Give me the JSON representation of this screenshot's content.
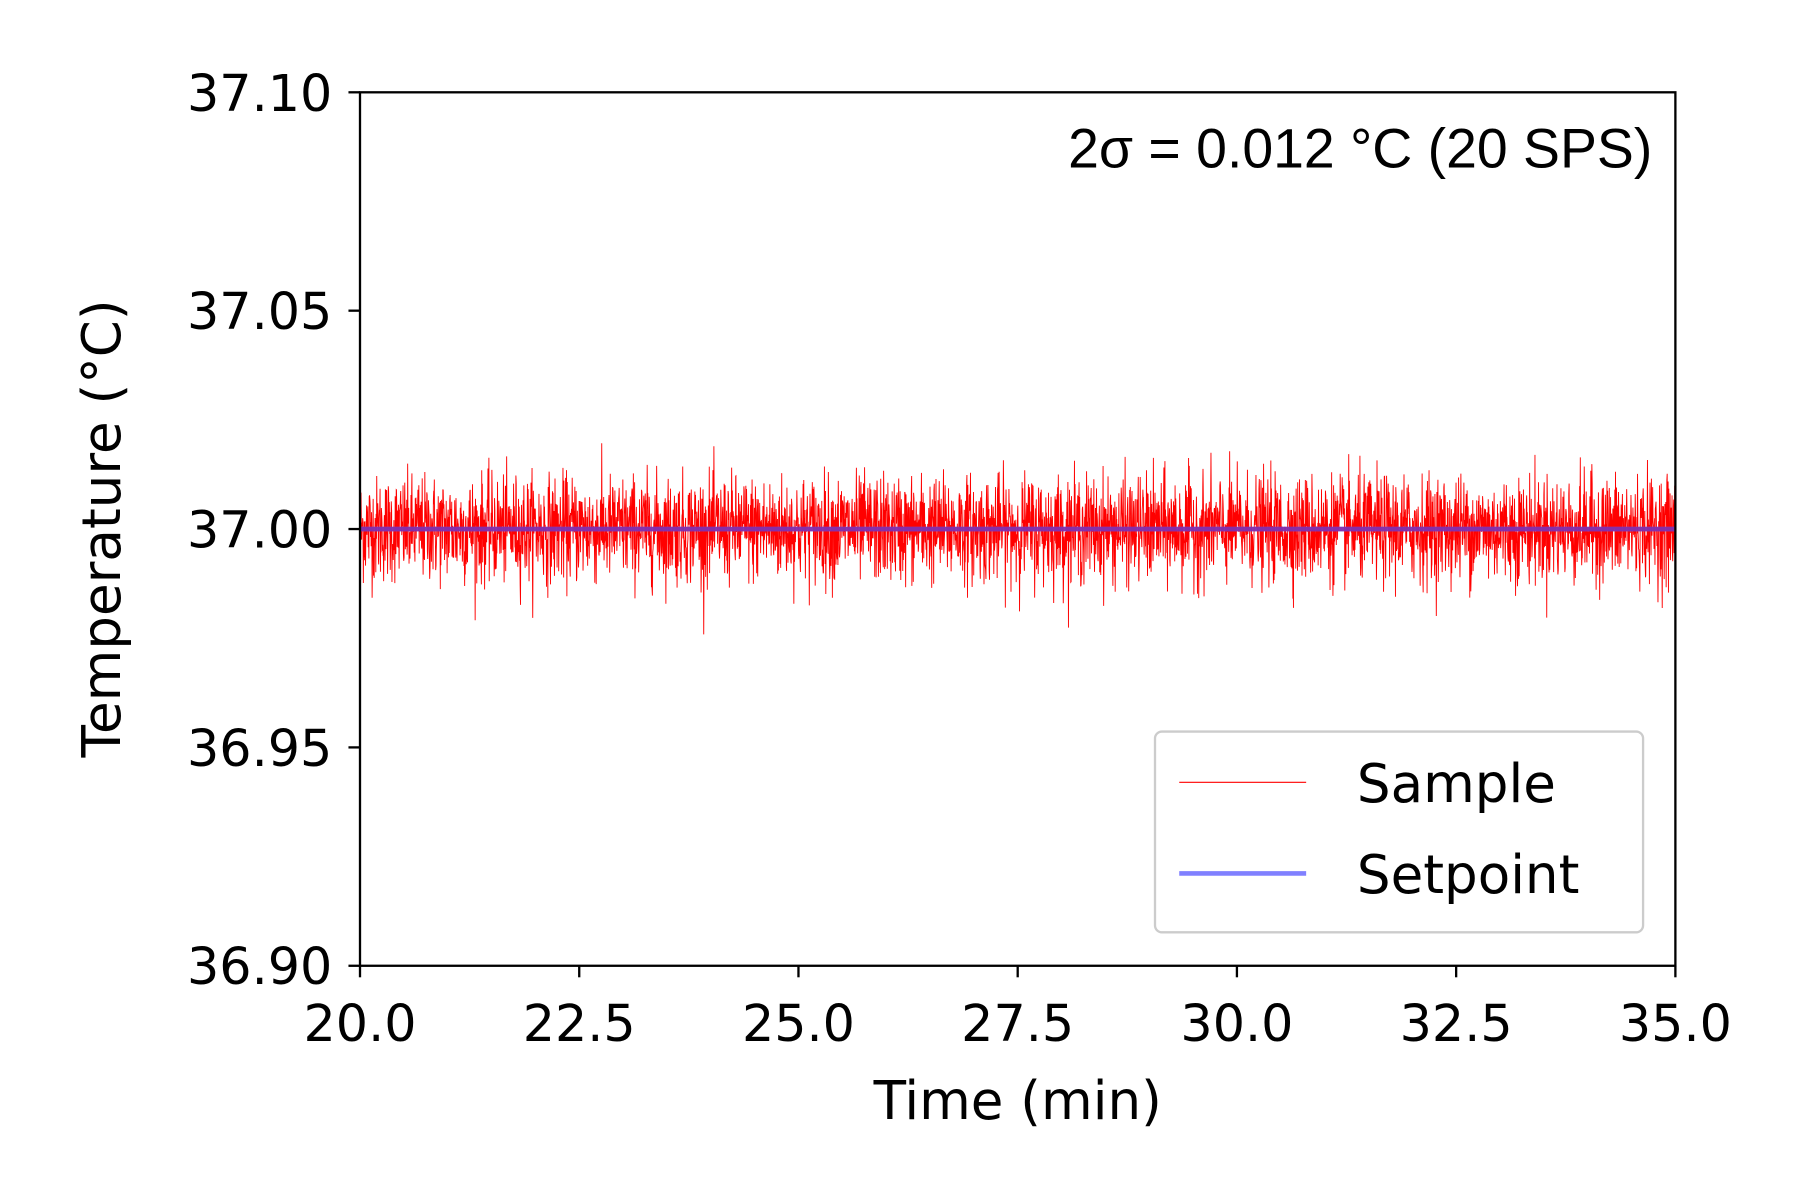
{
  "chart_data": {
    "type": "line",
    "title": "",
    "xlabel": "Time (min)",
    "ylabel": "Temperature (°C)",
    "xlim": [
      20.0,
      35.0
    ],
    "ylim": [
      36.9,
      37.1
    ],
    "xticks": [
      "20.0",
      "22.5",
      "25.0",
      "27.5",
      "30.0",
      "32.5",
      "35.0"
    ],
    "yticks": [
      "36.90",
      "36.95",
      "37.00",
      "37.05",
      "37.10"
    ],
    "grid": false,
    "annotation": "2σ = 0.012 °C (20 SPS)",
    "legend": {
      "placement": "lower-right",
      "entries": [
        "Sample",
        "Setpoint"
      ]
    },
    "series": [
      {
        "name": "Sample",
        "color": "#ff0000",
        "kind": "noise",
        "mean": 37.0,
        "std": 0.006,
        "sample_rate_sps": 20,
        "x_range": [
          20.0,
          35.0
        ]
      },
      {
        "name": "Setpoint",
        "color": "#8080ff",
        "x": [
          20.0,
          35.0
        ],
        "y": [
          37.0,
          37.0
        ]
      }
    ]
  }
}
